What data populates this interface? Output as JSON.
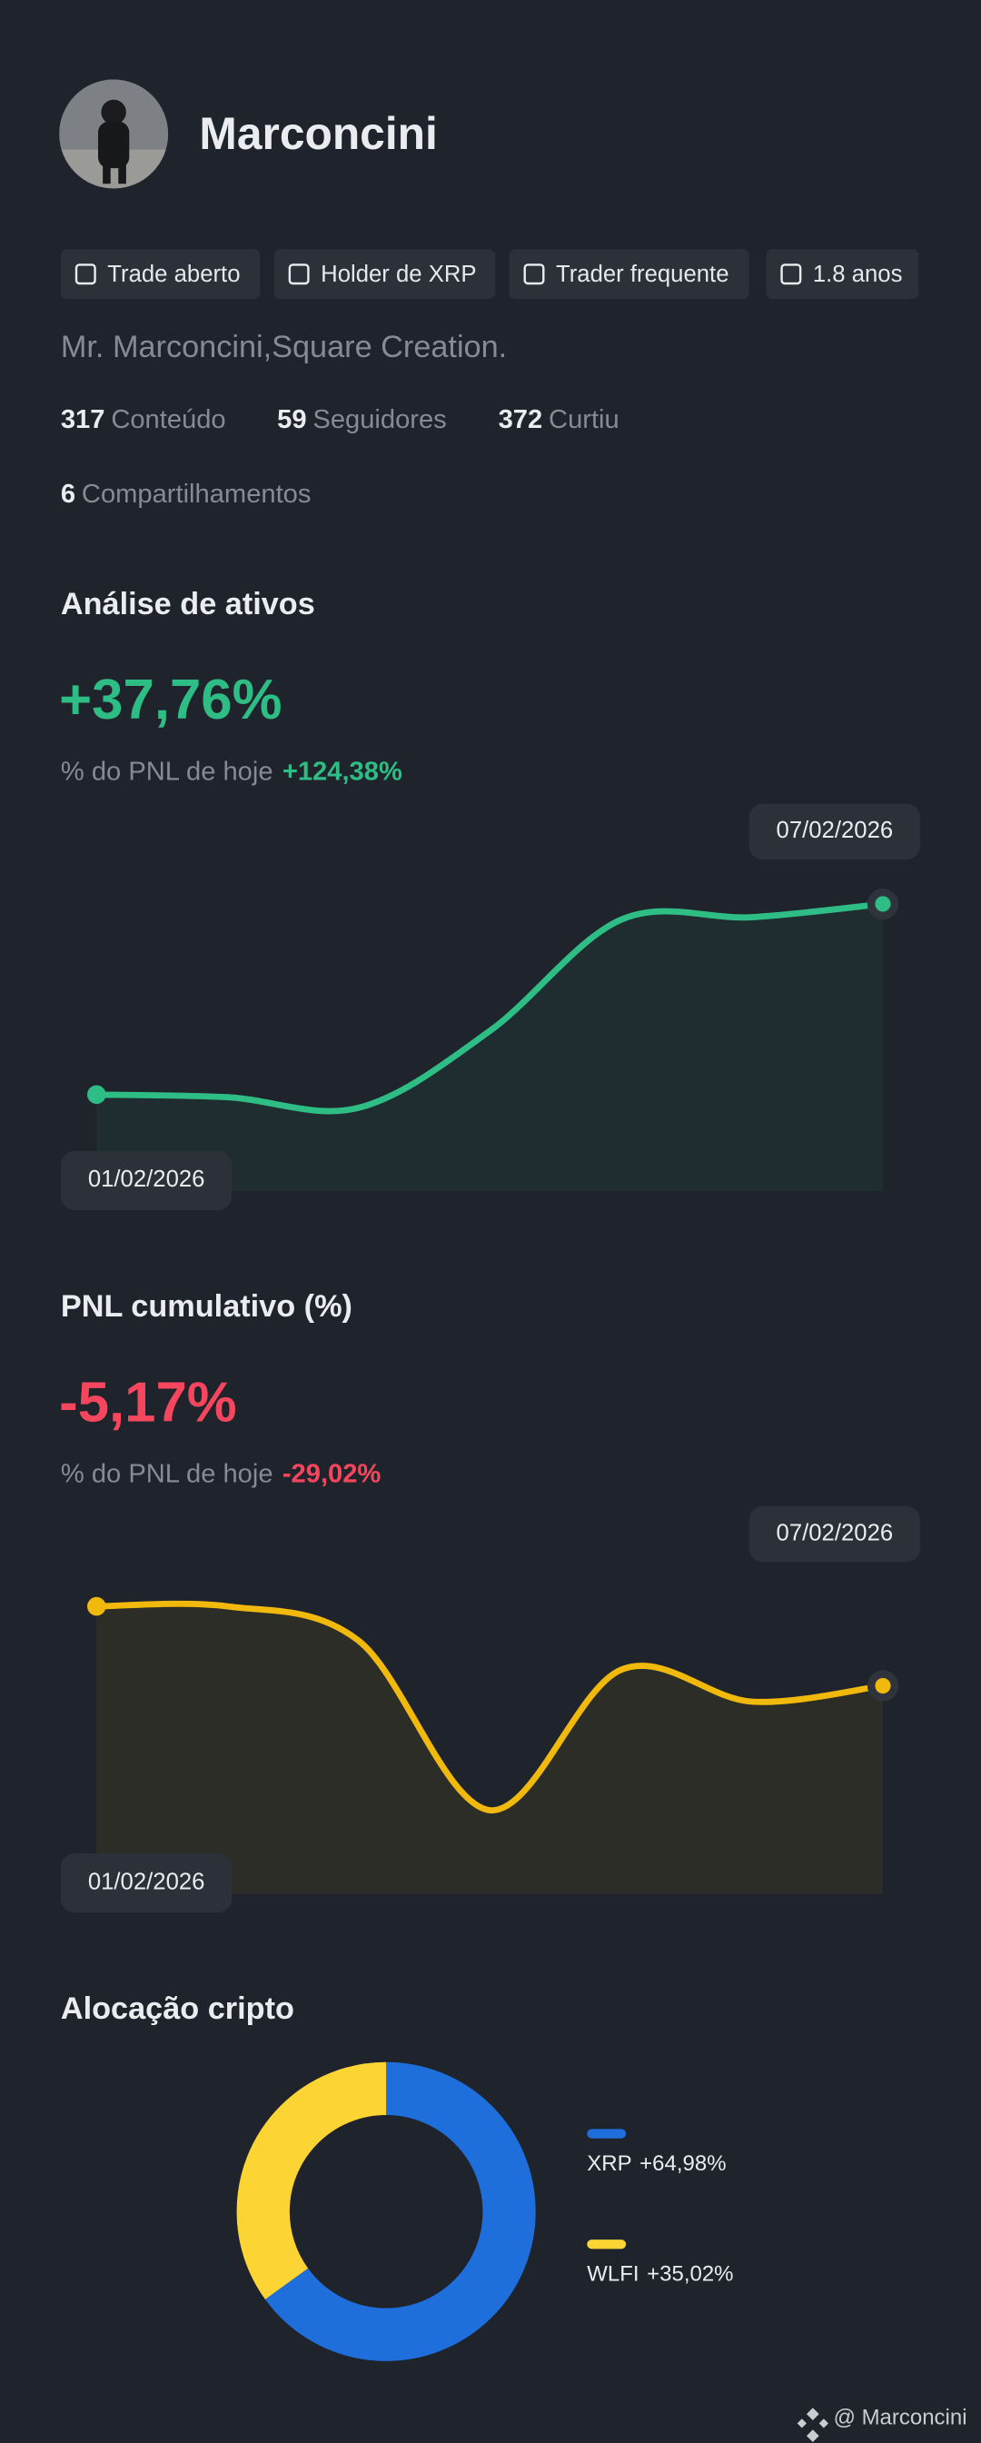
{
  "profile": {
    "name": "Marconcini",
    "tags": [
      "Trade aberto",
      "Holder de XRP",
      "Trader frequente",
      "1.8 anos"
    ],
    "bio": "Mr. Marconcini,Square Creation.",
    "stats": [
      {
        "value": 317,
        "label": "Conteúdo"
      },
      {
        "value": 59,
        "label": "Seguidores"
      },
      {
        "value": 372,
        "label": "Curtiu"
      },
      {
        "value": 6,
        "label": "Compartilhamentos"
      }
    ]
  },
  "chart_data": [
    {
      "type": "line",
      "title": "Análise de ativos",
      "headline": "+37,76%",
      "note": "% do PNL de hoje",
      "change": "+124,38%",
      "accent": "#2ebd85",
      "categories": [
        "01/02/2026",
        null,
        null,
        null,
        null,
        null,
        "07/02/2026"
      ],
      "series": [
        {
          "color": "#2ebd85",
          "values": [
            16,
            15,
            11,
            40,
            82,
            83,
            88
          ]
        }
      ],
      "ylim": [
        0,
        100
      ]
    },
    {
      "type": "line",
      "title": "PNL cumulativo (%)",
      "headline": "-5,17%",
      "note": "% do PNL de hoje",
      "change": "-29,02%",
      "accent": "#f6465d",
      "categories": [
        "01/02/2026",
        null,
        null,
        null,
        null,
        null,
        "07/02/2026"
      ],
      "series": [
        {
          "color": "#f0b90b",
          "values": [
            88,
            88,
            75,
            11,
            64,
            52,
            58
          ]
        }
      ],
      "ylim": [
        0,
        100
      ]
    },
    {
      "type": "pie",
      "title": "Alocação cripto",
      "donut": true,
      "categories": [
        "XRP",
        "WLFI"
      ],
      "values": [
        64.98,
        35.02
      ],
      "value_labels": [
        "+64,98%",
        "+35,02%"
      ],
      "colors": [
        "#1e6fdc",
        "#fcd535"
      ]
    }
  ],
  "footer": "@ Marconcini"
}
